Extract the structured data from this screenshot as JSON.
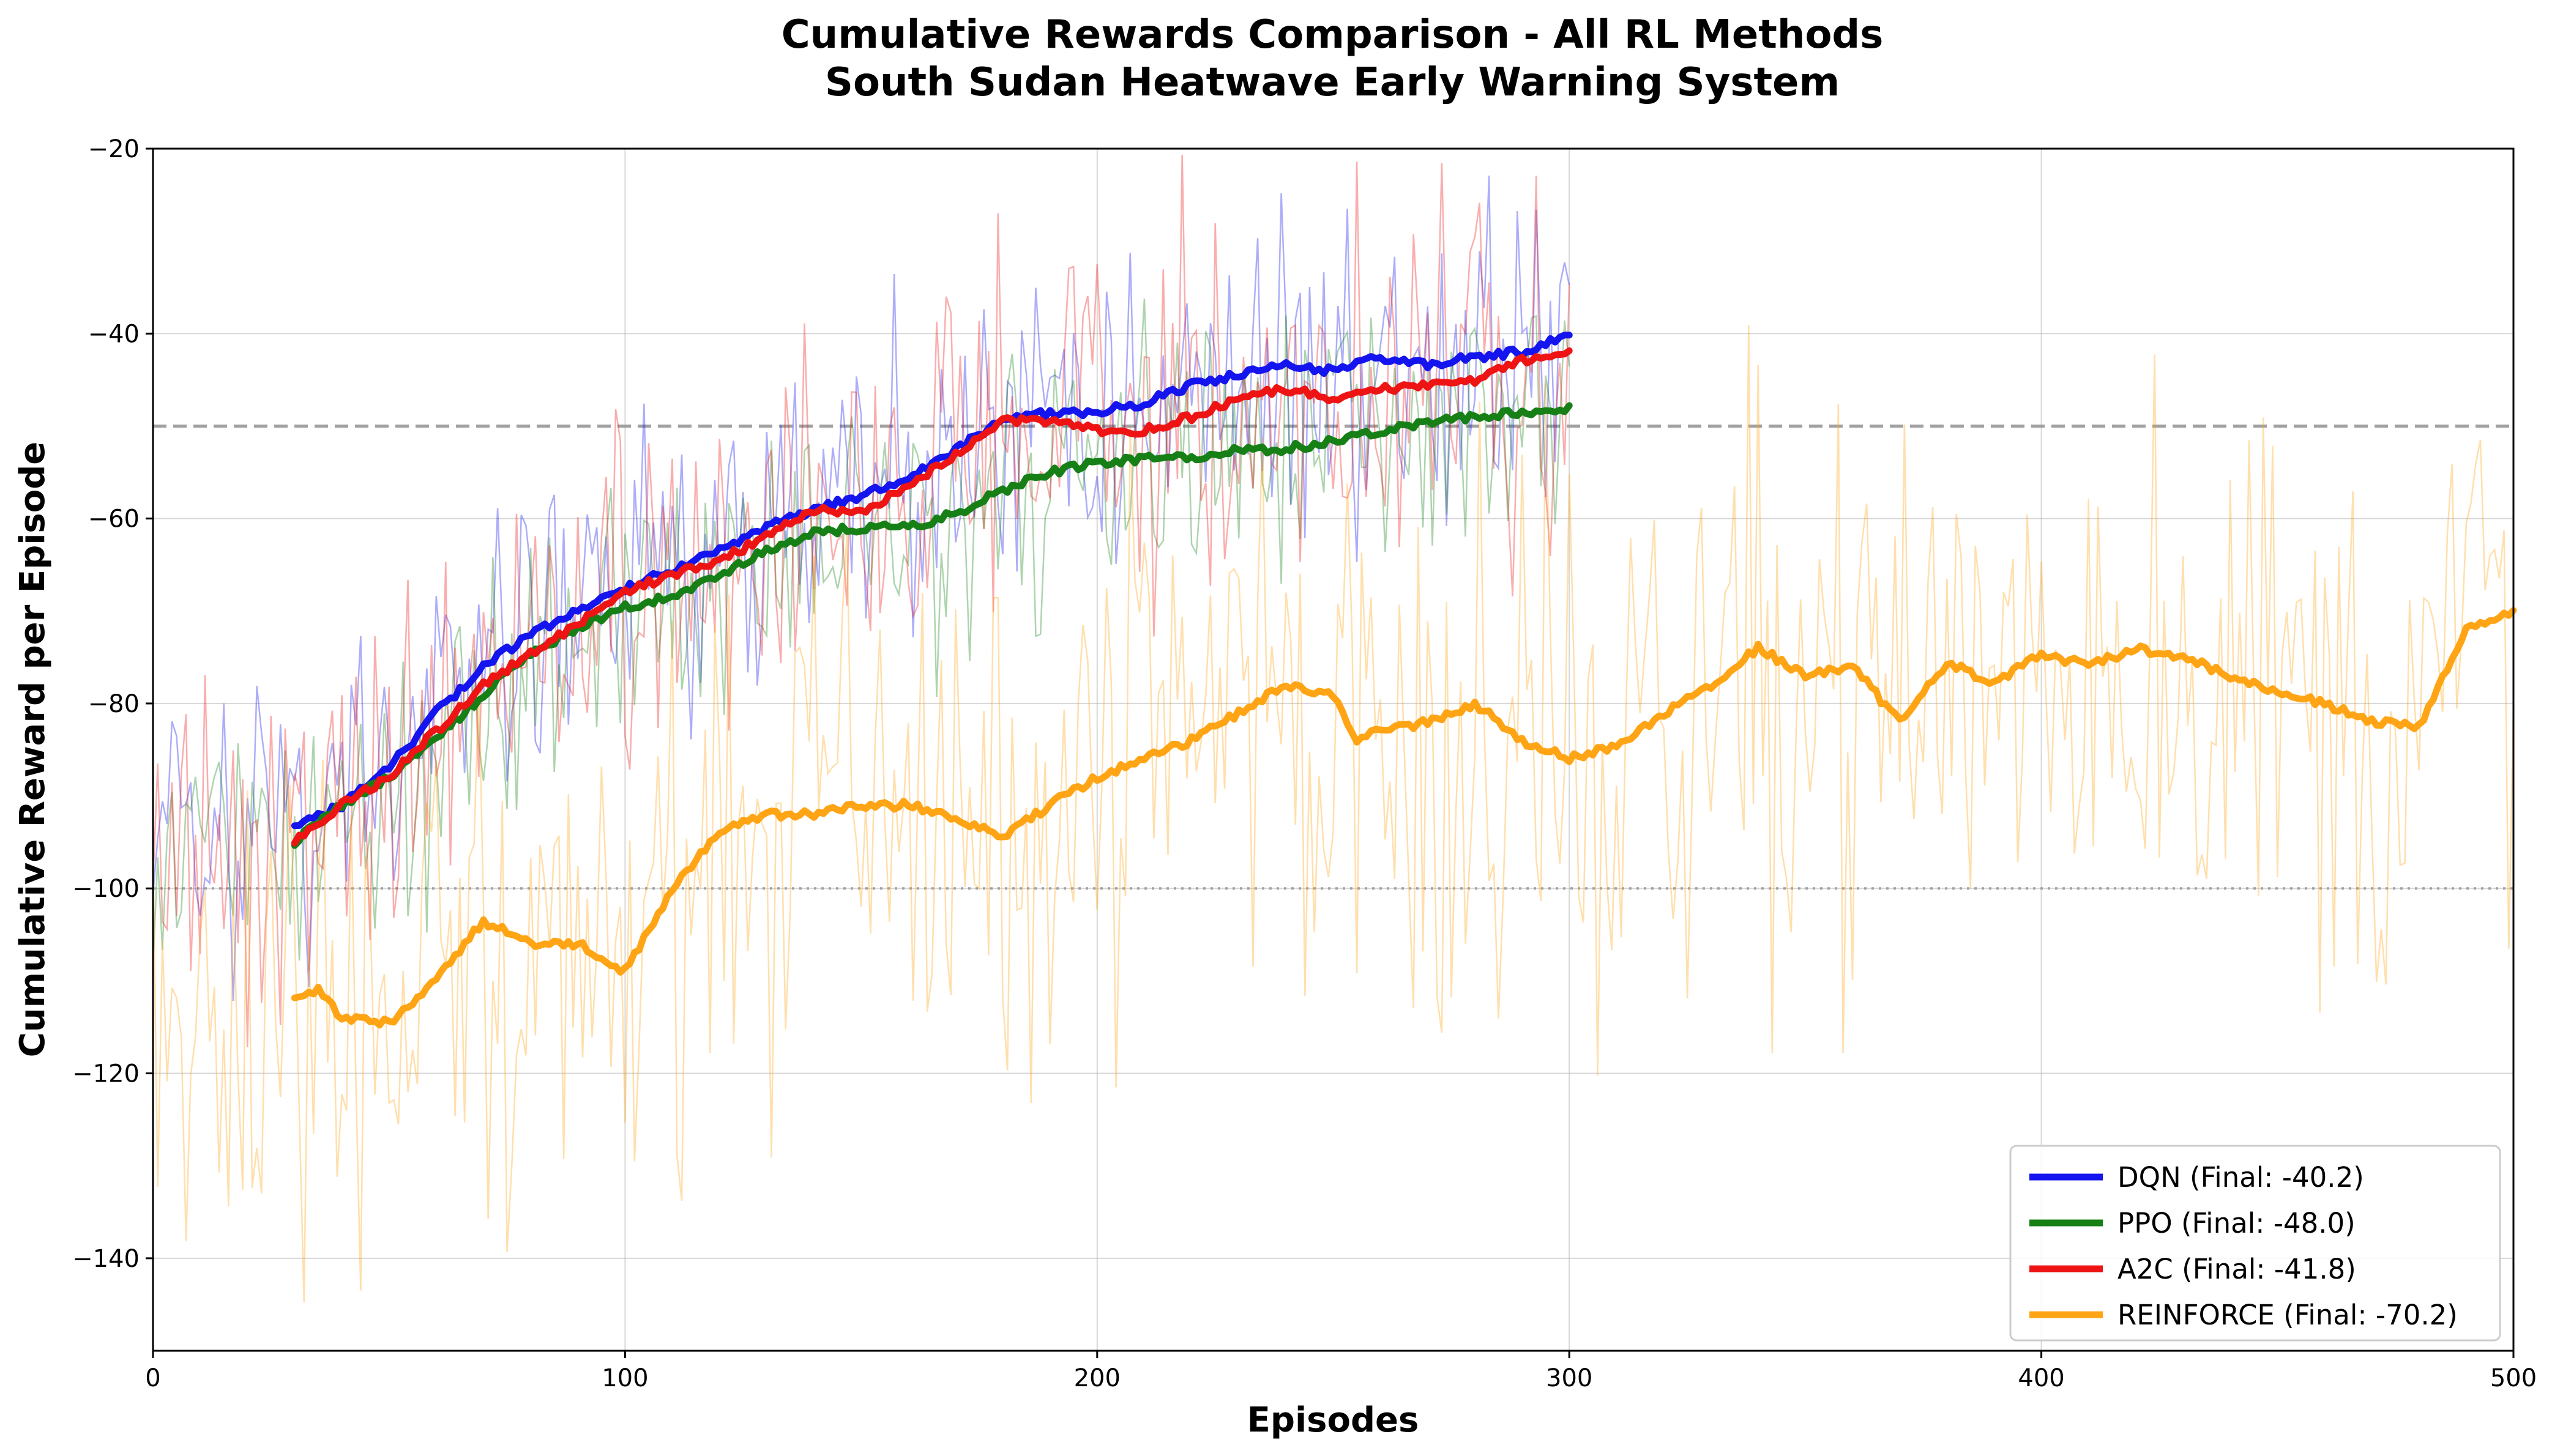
{
  "chart_data": {
    "type": "line",
    "title": "Cumulative Rewards Comparison - All RL Methods",
    "subtitle": "South Sudan Heatwave Early Warning System",
    "xlabel": "Episodes",
    "ylabel": "Cumulative Reward per Episode",
    "xlim": [
      0,
      500
    ],
    "ylim": [
      -150,
      -20
    ],
    "xticks": [
      "0",
      "100",
      "200",
      "300",
      "400",
      "500"
    ],
    "yticks": [
      "−20",
      "−40",
      "−60",
      "−80",
      "−100",
      "−120",
      "−140"
    ],
    "grid": true,
    "legend_position": "bottom-right",
    "reference_lines": [
      {
        "y": -50,
        "style": "dashed",
        "color": "#a0a0a0"
      },
      {
        "y": -100,
        "style": "dotted",
        "color": "#a0a0a0"
      }
    ],
    "series": [
      {
        "name": "DQN (Final: -40.2)",
        "color": "#1414ee",
        "raw_episodes": [
          0,
          300
        ],
        "smoothed": {
          "x": [
            30,
            40,
            50,
            60,
            70,
            80,
            90,
            100,
            110,
            120,
            130,
            140,
            150,
            160,
            170,
            180,
            190,
            200,
            210,
            220,
            230,
            240,
            250,
            260,
            270,
            280,
            290,
            300
          ],
          "y": [
            -93.5,
            -91,
            -87,
            -81,
            -76,
            -72.5,
            -70,
            -67.5,
            -65.5,
            -63.5,
            -61,
            -59,
            -57.5,
            -55.5,
            -52.5,
            -49.5,
            -48.5,
            -48.5,
            -47.5,
            -45.5,
            -44.5,
            -43.5,
            -44,
            -42.5,
            -43.5,
            -42.5,
            -42,
            -40.2
          ]
        }
      },
      {
        "name": "PPO (Final: -48.0)",
        "color": "#168016",
        "raw_episodes": [
          0,
          300
        ],
        "smoothed": {
          "x": [
            30,
            40,
            50,
            60,
            70,
            80,
            90,
            100,
            110,
            120,
            130,
            140,
            150,
            160,
            170,
            180,
            190,
            200,
            210,
            220,
            230,
            240,
            250,
            260,
            270,
            280,
            290,
            300
          ],
          "y": [
            -95,
            -91,
            -88,
            -84,
            -79,
            -74.5,
            -72,
            -69.5,
            -68.5,
            -66,
            -63.5,
            -61.5,
            -61,
            -61,
            -59.5,
            -57,
            -55,
            -54,
            -53.5,
            -53.5,
            -52.5,
            -52.5,
            -51.5,
            -50.5,
            -49.5,
            -49,
            -48.5,
            -48.0
          ]
        }
      },
      {
        "name": "A2C (Final: -41.8)",
        "color": "#ee1414",
        "raw_episodes": [
          0,
          300
        ],
        "smoothed": {
          "x": [
            30,
            40,
            50,
            60,
            70,
            80,
            90,
            100,
            110,
            120,
            130,
            140,
            150,
            160,
            170,
            180,
            190,
            200,
            210,
            220,
            230,
            240,
            250,
            260,
            270,
            280,
            290,
            300
          ],
          "y": [
            -95,
            -91,
            -88,
            -83,
            -78,
            -74.5,
            -71.5,
            -68,
            -66,
            -64.5,
            -62,
            -59,
            -59.5,
            -56.5,
            -53,
            -49.5,
            -49.5,
            -50.5,
            -50.5,
            -49,
            -47,
            -46,
            -47,
            -46,
            -45.5,
            -45,
            -43,
            -41.8
          ]
        }
      },
      {
        "name": "REINFORCE (Final: -70.2)",
        "color": "#ffa414",
        "raw_episodes": [
          0,
          500
        ],
        "smoothed": {
          "x": [
            30,
            35,
            40,
            50,
            60,
            70,
            80,
            90,
            100,
            110,
            120,
            130,
            140,
            150,
            160,
            170,
            180,
            190,
            200,
            210,
            220,
            230,
            240,
            250,
            255,
            260,
            270,
            280,
            290,
            300,
            310,
            320,
            330,
            340,
            350,
            360,
            370,
            380,
            390,
            400,
            410,
            420,
            430,
            440,
            450,
            460,
            470,
            480,
            490,
            500
          ],
          "y": [
            -112,
            -111,
            -114,
            -114.5,
            -110,
            -103.5,
            -106,
            -106,
            -109,
            -100,
            -94,
            -92,
            -92,
            -91,
            -91,
            -92.5,
            -94.5,
            -91,
            -88,
            -86,
            -84,
            -81,
            -78,
            -79,
            -84,
            -83,
            -82,
            -80,
            -84,
            -86,
            -84.5,
            -81,
            -78,
            -74,
            -77,
            -76,
            -82,
            -75.5,
            -78,
            -74.5,
            -76,
            -74,
            -75,
            -77,
            -79,
            -80,
            -82,
            -82.5,
            -72,
            -70.2
          ]
        }
      }
    ]
  }
}
